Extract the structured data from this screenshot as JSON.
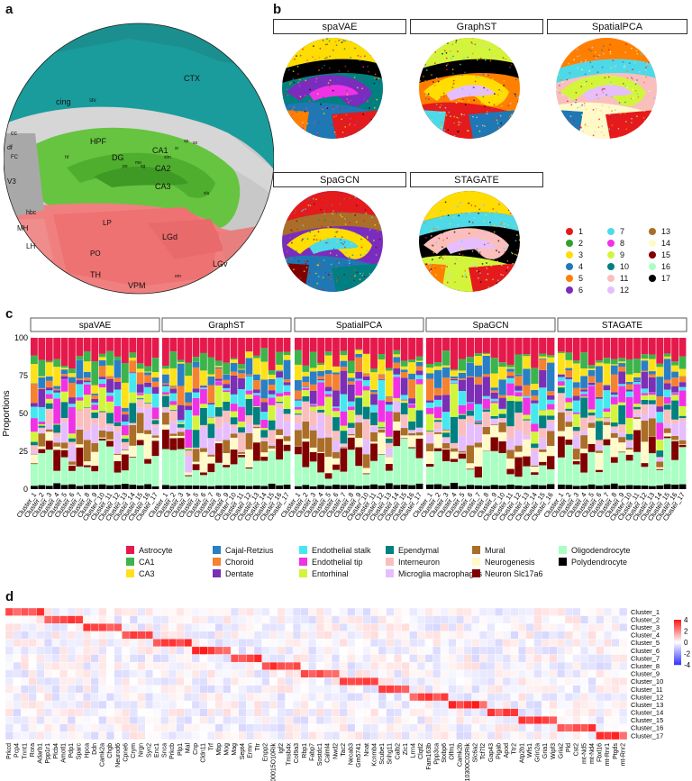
{
  "panels": {
    "a": "a",
    "b": "b",
    "c": "c",
    "d": "d"
  },
  "brain_labels": [
    "CTX",
    "cing",
    "stv",
    "cc",
    "df",
    "FC",
    "V3",
    "HPF",
    "DG",
    "CA1",
    "CA2",
    "CA3",
    "sp",
    "so",
    "sr",
    "slm",
    "mo",
    "po",
    "sg",
    "slu",
    "hf",
    "hbc",
    "MH",
    "LH",
    "LP",
    "LGd",
    "PO",
    "TH",
    "VPM",
    "LGv",
    "em"
  ],
  "methods": [
    "spaVAE",
    "GraphST",
    "SpatialPCA",
    "SpaGCN",
    "STAGATE"
  ],
  "cluster_legend": [
    {
      "label": "1",
      "color": "#e41a1c"
    },
    {
      "label": "2",
      "color": "#33a02c"
    },
    {
      "label": "3",
      "color": "#ffdd00"
    },
    {
      "label": "4",
      "color": "#1f78b4"
    },
    {
      "label": "5",
      "color": "#ff7f00"
    },
    {
      "label": "6",
      "color": "#7b2cbf"
    },
    {
      "label": "7",
      "color": "#4dd9e8"
    },
    {
      "label": "8",
      "color": "#f032e6"
    },
    {
      "label": "9",
      "color": "#d2f53c"
    },
    {
      "label": "10",
      "color": "#008080"
    },
    {
      "label": "11",
      "color": "#fabebe"
    },
    {
      "label": "12",
      "color": "#e6beff"
    },
    {
      "label": "13",
      "color": "#aa6e28"
    },
    {
      "label": "14",
      "color": "#fffac8"
    },
    {
      "label": "15",
      "color": "#800000"
    },
    {
      "label": "16",
      "color": "#aaffc3"
    },
    {
      "label": "17",
      "color": "#000000"
    }
  ],
  "cell_types": [
    {
      "label": "Astrocyte",
      "color": "#e6194b"
    },
    {
      "label": "CA1",
      "color": "#3cb44b"
    },
    {
      "label": "CA3",
      "color": "#ffe119"
    },
    {
      "label": "Cajal-Retzius",
      "color": "#2a7fc4"
    },
    {
      "label": "Choroid",
      "color": "#f58231"
    },
    {
      "label": "Dentate",
      "color": "#7a2fb5"
    },
    {
      "label": "Endothelial stalk",
      "color": "#46e8f0"
    },
    {
      "label": "Endothelial tip",
      "color": "#f032e6"
    },
    {
      "label": "Entorhinal",
      "color": "#d2f53c"
    },
    {
      "label": "Ependymal",
      "color": "#008080"
    },
    {
      "label": "Interneuron",
      "color": "#fabebe"
    },
    {
      "label": "Microglia macrophages",
      "color": "#e6beff"
    },
    {
      "label": "Mural",
      "color": "#aa6e28"
    },
    {
      "label": "Neurogenesis",
      "color": "#fffac8"
    },
    {
      "label": "Neuron Slc17a6",
      "color": "#800000"
    },
    {
      "label": "Oligodendrocyte",
      "color": "#aaffc3"
    },
    {
      "label": "Polydendrocyte",
      "color": "#000000"
    }
  ],
  "chart_data": [
    {
      "type": "bar",
      "ylabel": "Proportions",
      "ylim": [
        0,
        100
      ],
      "yticks": [
        "0",
        "25",
        "50",
        "75",
        "100"
      ],
      "facets": [
        "spaVAE",
        "GraphST",
        "SpatialPCA",
        "SpaGCN",
        "STAGATE"
      ],
      "cluster_counts": [
        17,
        17,
        17,
        16,
        17
      ],
      "categories": [
        "Cluster_1",
        "Cluster_2",
        "Cluster_3",
        "Cluster_4",
        "Cluster_5",
        "Cluster_6",
        "Cluster_7",
        "Cluster_8",
        "Cluster_9",
        "Cluster_10",
        "Cluster_11",
        "Cluster_12",
        "Cluster_13",
        "Cluster_14",
        "Cluster_15",
        "Cluster_16",
        "Cluster_17"
      ],
      "stacked": true,
      "series_order": [
        "Polydendrocyte",
        "Oligodendrocyte",
        "Neuron Slc17a6",
        "Neurogenesis",
        "Mural",
        "Microglia macrophages",
        "Interneuron",
        "Ependymal",
        "Entorhinal",
        "Endothelial tip",
        "Endothelial stalk",
        "Dentate",
        "Choroid",
        "Cajal-Retzius",
        "CA3",
        "CA1",
        "Astrocyte"
      ]
    },
    {
      "type": "heatmap",
      "genes": [
        "Prkcd",
        "Pcp4",
        "Tnnt1",
        "Rora",
        "Adarb1",
        "Ppp1r1",
        "Plcb4",
        "Amotl1",
        "Pdp1",
        "Sparc",
        "Hpca",
        "Ddn",
        "Camk2a",
        "Chgb",
        "Neurod6",
        "Cpne6",
        "Crym",
        "Nrgn",
        "Syn2",
        "Enc1",
        "Snca",
        "Prkcb",
        "Plp1",
        "Mal",
        "Cnp",
        "Cldn11",
        "Trf",
        "Mbp",
        "Mog",
        "Mag",
        "Sept4",
        "Ermn",
        "Ttr",
        "Enpp2",
        "1500015O10Rik",
        "Igf2",
        "Tmsb4x",
        "Col9a3",
        "Rbp1",
        "Fabp7",
        "Sostdc1",
        "Calml4",
        "Nwd2",
        "Tac2",
        "Necab3",
        "Gm5741",
        "Nnat",
        "Kcnmb4",
        "Scube1",
        "Snhg11",
        "Calb2",
        "Zic1",
        "Lrrn4",
        "Clqtl2",
        "Fam163b",
        "Ppp3ca",
        "Stxbp6",
        "Olfm1",
        "Camk2b",
        "2010300C02Rik",
        "Slc6a2",
        "Tcf7l2",
        "Gap43",
        "Pigab",
        "Apod",
        "Ttr2",
        "Atp2b1",
        "Wfs1",
        "Grin2a",
        "Gria1",
        "Wipf3",
        "Gria2",
        "Pld",
        "Cst2",
        "mt-Nd5",
        "mt-Nd4",
        "Fbxl16",
        "mt-Rnr1",
        "Ptgds",
        "mt-Rnr2"
      ],
      "rows": [
        "Cluster_1",
        "Cluster_2",
        "Cluster_3",
        "Cluster_4",
        "Cluster_5",
        "Cluster_6",
        "Cluster_7",
        "Cluster_8",
        "Cluster_9",
        "Cluster_10",
        "Cluster_11",
        "Cluster_12",
        "Cluster_13",
        "Cluster_14",
        "Cluster_15",
        "Cluster_16",
        "Cluster_17"
      ],
      "colorbar_ticks": [
        "4",
        "2",
        "0",
        "-2",
        "-4"
      ],
      "range": [
        -4,
        4
      ]
    }
  ]
}
